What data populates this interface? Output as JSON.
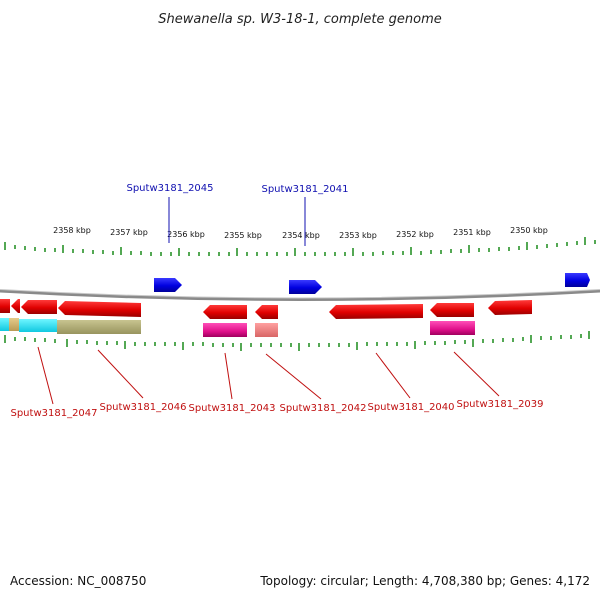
{
  "title": "Shewanella sp. W3-18-1, complete genome",
  "footer": {
    "accession": "Accession: NC_008750",
    "summary": "Topology: circular; Length: 4,708,380 bp; Genes: 4,172"
  },
  "colors": {
    "forward_gene": "#1010e0",
    "reverse_gene": "#e80000",
    "backbone": "#909090",
    "tick": "#1a8a1a",
    "label_blue": "#1010b0",
    "label_red": "#c01010"
  },
  "scale_labels": [
    "2358 kbp",
    "2357 kbp",
    "2356 kbp",
    "2355 kbp",
    "2354 kbp",
    "2353 kbp",
    "2352 kbp",
    "2351 kbp",
    "2350 kbp"
  ],
  "gene_labels_top": [
    "Sputw3181_2045",
    "Sputw3181_2041"
  ],
  "gene_labels_bottom": [
    "Sputw3181_2047",
    "Sputw3181_2046",
    "Sputw3181_2043",
    "Sputw3181_2042",
    "Sputw3181_2040",
    "Sputw3181_2039"
  ]
}
